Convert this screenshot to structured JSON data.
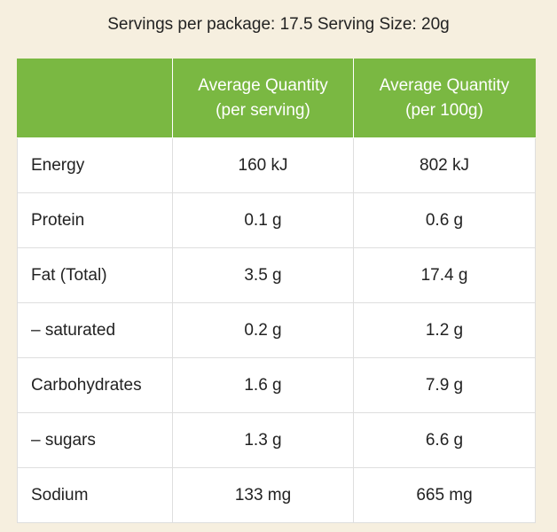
{
  "serving_info": "Servings per package: 17.5 Serving Size: 20g",
  "table": {
    "corner_label": "",
    "columns": [
      {
        "line1": "Average Quantity",
        "line2": "(per serving)"
      },
      {
        "line1": "Average Quantity",
        "line2": "(per 100g)"
      }
    ],
    "rows": [
      {
        "nutrient": "Energy",
        "per_serving": "160 kJ",
        "per_100g": "802 kJ"
      },
      {
        "nutrient": "Protein",
        "per_serving": "0.1 g",
        "per_100g": "0.6 g"
      },
      {
        "nutrient": "Fat (Total)",
        "per_serving": "3.5 g",
        "per_100g": "17.4 g"
      },
      {
        "nutrient": "– saturated",
        "per_serving": "0.2 g",
        "per_100g": "1.2 g"
      },
      {
        "nutrient": "Carbohydrates",
        "per_serving": "1.6 g",
        "per_100g": "7.9 g"
      },
      {
        "nutrient": "– sugars",
        "per_serving": "1.3 g",
        "per_100g": "6.6 g"
      },
      {
        "nutrient": "Sodium",
        "per_serving": "133 mg",
        "per_100g": "665 mg"
      }
    ]
  },
  "colors": {
    "background": "#f6efdf",
    "header": "#7ab842",
    "header_text": "#ffffff",
    "border": "#dedede"
  }
}
